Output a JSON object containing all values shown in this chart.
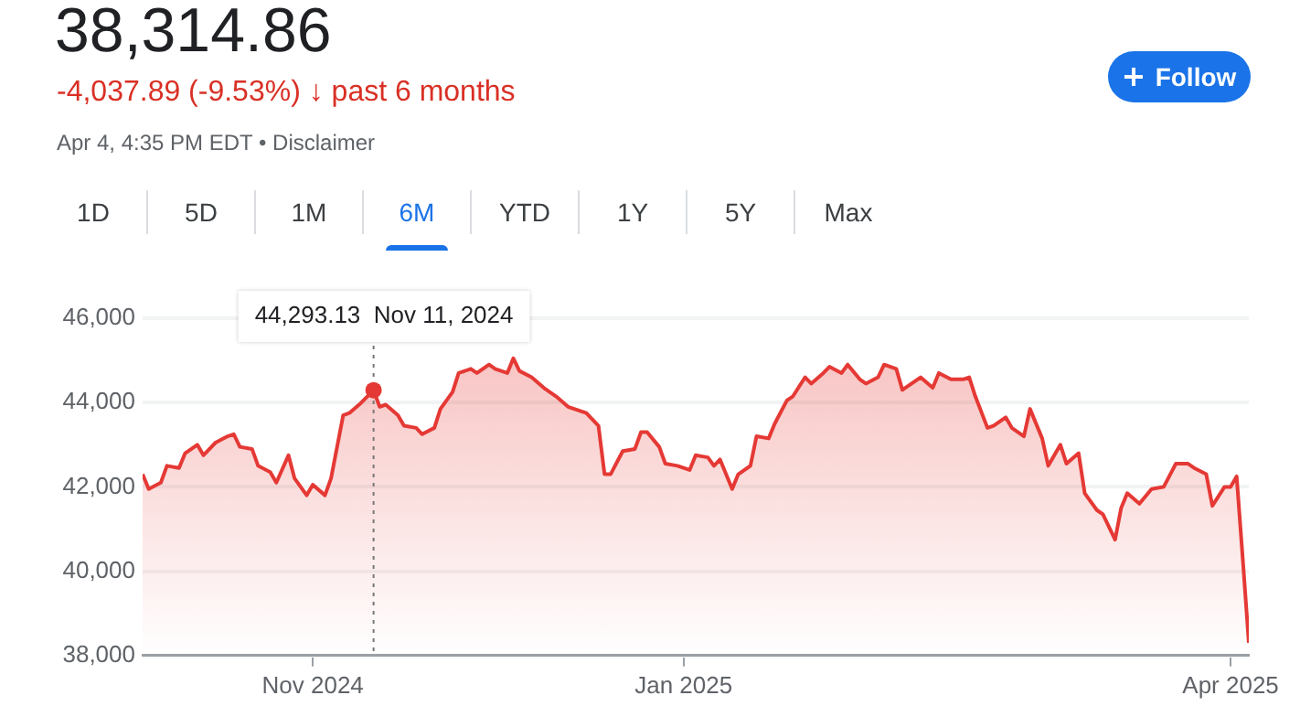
{
  "chart_data": {
    "type": "area",
    "title": "38,314.86",
    "subtitle": "-4,037.89 (-9.53%) ↓ past 6 months",
    "annotations": [
      "Apr 4, 4:35 PM EDT • Disclaimer",
      "1D",
      "5D",
      "1M",
      "6M",
      "YTD",
      "1Y",
      "5Y",
      "Max",
      "Follow",
      {
        "text": "44,293.13  Nov 11, 2024",
        "x": "2024-11-11",
        "y": 44293.13
      }
    ],
    "x": [
      "2024-10-04",
      "2024-10-05",
      "2024-10-07",
      "2024-10-08",
      "2024-10-10",
      "2024-10-11",
      "2024-10-13",
      "2024-10-14",
      "2024-10-16",
      "2024-10-18",
      "2024-10-19",
      "2024-10-20",
      "2024-10-22",
      "2024-10-23",
      "2024-10-25",
      "2024-10-26",
      "2024-10-28",
      "2024-10-29",
      "2024-10-31",
      "2024-11-01",
      "2024-11-03",
      "2024-11-04",
      "2024-11-06",
      "2024-11-07",
      "2024-11-09",
      "2024-11-11",
      "2024-11-12",
      "2024-11-13",
      "2024-11-15",
      "2024-11-16",
      "2024-11-18",
      "2024-11-19",
      "2024-11-21",
      "2024-11-22",
      "2024-11-24",
      "2024-11-25",
      "2024-11-27",
      "2024-11-28",
      "2024-11-30",
      "2024-12-01",
      "2024-12-03",
      "2024-12-04",
      "2024-12-05",
      "2024-12-07",
      "2024-12-09",
      "2024-12-11",
      "2024-12-13",
      "2024-12-16",
      "2024-12-18",
      "2024-12-19",
      "2024-12-20",
      "2024-12-22",
      "2024-12-24",
      "2024-12-25",
      "2024-12-26",
      "2024-12-28",
      "2024-12-29",
      "2024-12-31",
      "2025-01-02",
      "2025-01-03",
      "2025-01-05",
      "2025-01-06",
      "2025-01-07",
      "2025-01-09",
      "2025-01-10",
      "2025-01-12",
      "2025-01-13",
      "2025-01-15",
      "2025-01-16",
      "2025-01-18",
      "2025-01-19",
      "2025-01-21",
      "2025-01-22",
      "2025-01-24",
      "2025-01-25",
      "2025-01-27",
      "2025-01-28",
      "2025-01-30",
      "2025-01-31",
      "2025-02-02",
      "2025-02-03",
      "2025-02-05",
      "2025-02-06",
      "2025-02-09",
      "2025-02-11",
      "2025-02-12",
      "2025-02-14",
      "2025-02-16",
      "2025-02-17",
      "2025-02-18",
      "2025-02-20",
      "2025-02-21",
      "2025-02-23",
      "2025-02-24",
      "2025-02-26",
      "2025-02-27",
      "2025-03-01",
      "2025-03-02",
      "2025-03-04",
      "2025-03-05",
      "2025-03-07",
      "2025-03-08",
      "2025-03-10",
      "2025-03-11",
      "2025-03-13",
      "2025-03-14",
      "2025-03-15",
      "2025-03-17",
      "2025-03-19",
      "2025-03-21",
      "2025-03-23",
      "2025-03-25",
      "2025-03-26",
      "2025-03-28",
      "2025-03-29",
      "2025-03-31",
      "2025-04-01",
      "2025-04-02",
      "2025-04-03",
      "2025-04-04"
    ],
    "series": [
      {
        "color": "#e53935",
        "values": [
          42300,
          41950,
          42100,
          42500,
          42450,
          42800,
          43000,
          42750,
          43050,
          43200,
          43250,
          42950,
          42900,
          42500,
          42350,
          42100,
          42750,
          42200,
          41800,
          42050,
          41800,
          42200,
          43700,
          43750,
          44000,
          44293.13,
          43900,
          43950,
          43700,
          43450,
          43400,
          43250,
          43400,
          43850,
          44250,
          44700,
          44800,
          44700,
          44900,
          44800,
          44700,
          45050,
          44750,
          44600,
          44350,
          44150,
          43900,
          43750,
          43450,
          42300,
          42300,
          42850,
          42900,
          43300,
          43300,
          42950,
          42550,
          42500,
          42400,
          42750,
          42700,
          42500,
          42650,
          41950,
          42300,
          42500,
          43200,
          43150,
          43500,
          44050,
          44150,
          44600,
          44450,
          44700,
          44850,
          44700,
          44900,
          44550,
          44450,
          44600,
          44900,
          44800,
          44300,
          44600,
          44350,
          44700,
          44550,
          44550,
          44600,
          44150,
          43400,
          43450,
          43650,
          43400,
          43200,
          43850,
          43150,
          42500,
          43000,
          42550,
          42800,
          41850,
          41450,
          41350,
          40750,
          41500,
          41850,
          41600,
          41950,
          42000,
          42550,
          42550,
          42450,
          42300,
          41550,
          42000,
          42000,
          42250,
          40300,
          38300
        ]
      }
    ],
    "ref_lines": [
      {
        "axis": "x",
        "value": "2024-11-11",
        "color": "#777777",
        "line_style": "dotted"
      }
    ],
    "xlim": [
      "2024-10-04",
      "2025-04-04"
    ],
    "xticks": [
      {
        "value": "2024-11-01",
        "label": "Nov 2024"
      },
      {
        "value": "2025-01-01",
        "label": "Jan 2025"
      },
      {
        "value": "2025-04-01",
        "label": "Apr 2025"
      }
    ],
    "ylim": [
      38000,
      46000
    ],
    "yticks": [
      {
        "value": 38000,
        "label": "38,000"
      },
      {
        "value": 40000,
        "label": "40,000"
      },
      {
        "value": 42000,
        "label": "42,000"
      },
      {
        "value": 44000,
        "label": "44,000"
      },
      {
        "value": 46000,
        "label": "46,000"
      }
    ],
    "grid": "y",
    "legend": false,
    "marker": "none",
    "line_style": "solid"
  }
}
